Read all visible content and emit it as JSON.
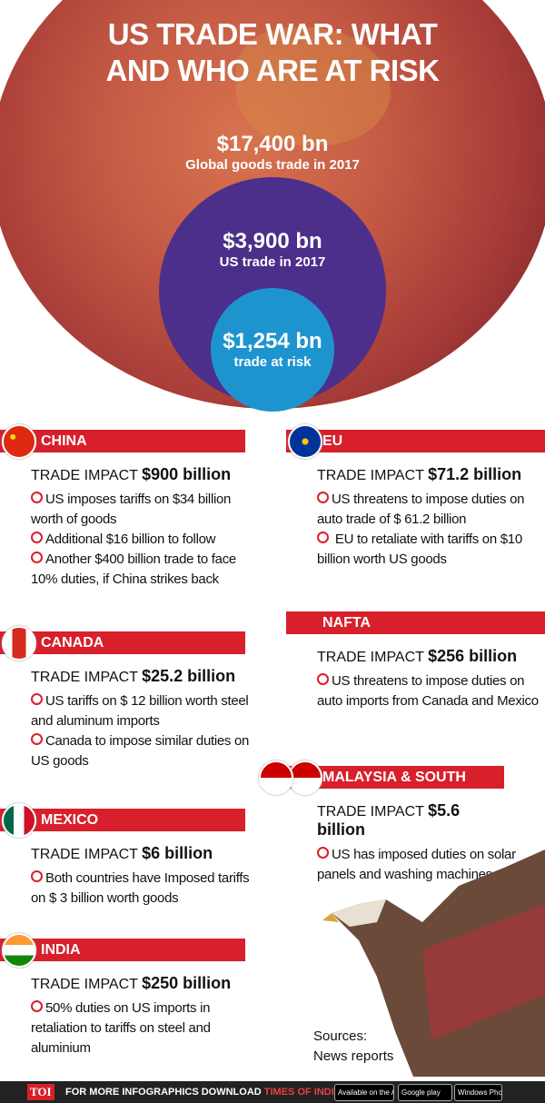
{
  "header": {
    "title": "US TRADE WAR: WHAT AND WHO ARE AT RISK"
  },
  "circles": [
    {
      "value": "$17,400 bn",
      "label": "Global goods trade in 2017"
    },
    {
      "value": "$3,900 bn",
      "label": "US trade in 2017"
    },
    {
      "value": "$1,254 bn",
      "label": "trade at risk"
    }
  ],
  "impact_label": "TRADE IMPACT",
  "left_column": [
    {
      "name": "CHINA",
      "impact": "$900 billion",
      "bullets": [
        "US imposes tariffs on $34 billion worth of goods",
        "Additional $16 billion to follow",
        "Another $400 billion trade to face 10% duties, if China strikes back"
      ]
    },
    {
      "name": "CANADA",
      "impact": "$25.2 billion",
      "bullets": [
        "US tariffs on $ 12 billion worth steel and aluminum imports",
        "Canada to impose similar duties on US goods"
      ]
    },
    {
      "name": "MEXICO",
      "impact": "$6 billion",
      "bullets": [
        "Both countries have Imposed tariffs on $ 3 billion worth goods"
      ]
    },
    {
      "name": "INDIA",
      "impact": "$250 billion",
      "bullets": [
        "50% duties on US imports in retaliation to tariffs on steel and aluminium"
      ]
    }
  ],
  "right_column": [
    {
      "name": "EU",
      "impact": "$71.2 billion",
      "bullets": [
        "US threatens to impose duties on auto trade of $ 61.2 billion",
        " EU to retaliate with tariffs on $10 billion worth US goods"
      ]
    },
    {
      "name": "NAFTA",
      "impact": "$256 billion",
      "bullets": [
        "US threatens to impose duties on auto imports from Canada and Mexico"
      ]
    },
    {
      "name": "MALAYSIA & SOUTH KOREA",
      "impact": "$5.6 billion",
      "bullets": [
        "US has imposed duties on solar panels and washing machines"
      ]
    }
  ],
  "sources": {
    "label": "Sources:",
    "text": "News reports"
  },
  "footer": {
    "logo": "TOI",
    "text": "FOR MORE INFOGRAPHICS DOWNLOAD",
    "app": "TIMES OF INDIA APP",
    "badges": [
      "Available on the App Store",
      "Google play",
      "Windows Phone"
    ]
  }
}
